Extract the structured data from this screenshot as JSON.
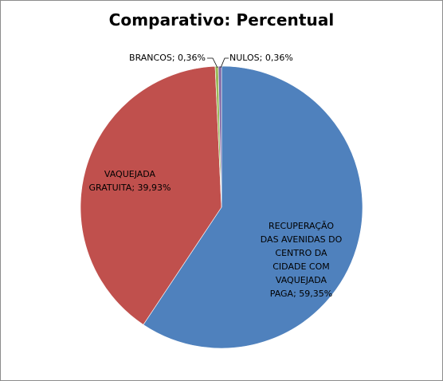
{
  "chart_data": {
    "type": "pie",
    "title": "Comparativo: Percentual",
    "slices": [
      {
        "label_lines": [
          "RECUPERAÇÃO",
          "DAS AVENIDAS  DO",
          "CENTRO  DA",
          "CIDADE COM",
          "VAQUEJADA",
          "PAGA;  59,35%"
        ],
        "value": 59.35,
        "color": "#4f81bd"
      },
      {
        "label_lines": [
          "VAQUEJADA",
          "GRATUITA;  39,93%"
        ],
        "value": 39.93,
        "color": "#c0504d"
      },
      {
        "label_lines": [
          "BRANCOS;  0,36%"
        ],
        "value": 0.36,
        "color": "#9bbb59"
      },
      {
        "label_lines": [
          "NULOS;  0,36%"
        ],
        "value": 0.36,
        "color": "#8064a2"
      }
    ],
    "legend": "none"
  }
}
